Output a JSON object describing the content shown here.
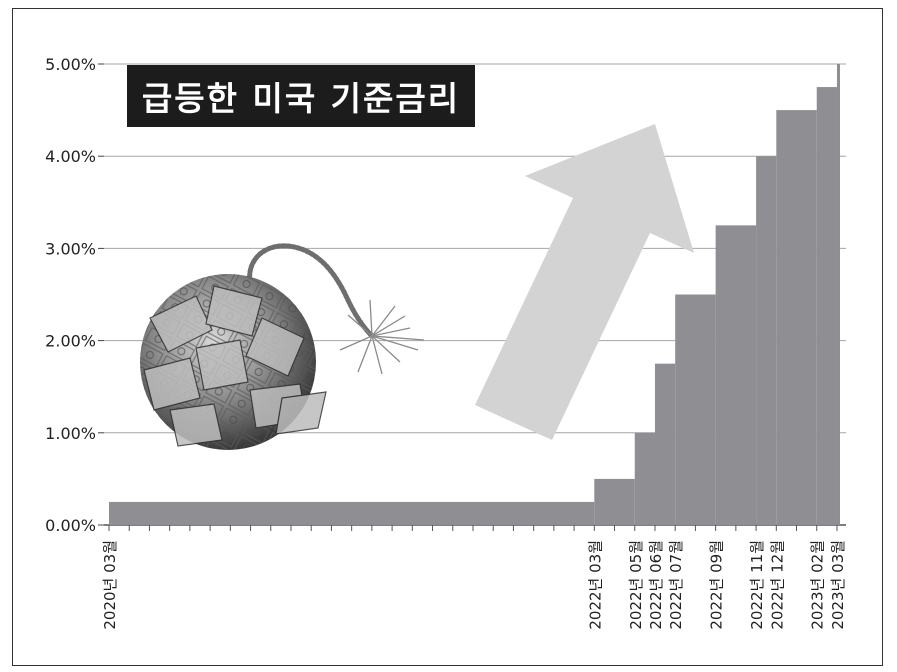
{
  "chart_data": {
    "type": "area",
    "title": "급등한 미국 기준금리",
    "ylim": [
      0,
      5
    ],
    "y_ticks": [
      {
        "value": 0,
        "label": "0.00%"
      },
      {
        "value": 1,
        "label": "1.00%"
      },
      {
        "value": 2,
        "label": "2.00%"
      },
      {
        "value": 3,
        "label": "3.00%"
      },
      {
        "value": 4,
        "label": "4.00%"
      },
      {
        "value": 5,
        "label": "5.00%"
      }
    ],
    "x_ticks": [
      "2020년 03월",
      "2022년 03월",
      "2022년 05월",
      "2022년 06월",
      "2022년 07월",
      "2022년 09월",
      "2022년 11월",
      "2022년 12월",
      "2023년 02월",
      "2023년 03월"
    ],
    "series": [
      {
        "x": [
          "2020년 03월",
          "2022년 03월",
          "2022년 05월",
          "2022년 06월",
          "2022년 07월",
          "2022년 09월",
          "2022년 11월",
          "2022년 12월",
          "2023년 02월",
          "2023년 03월"
        ],
        "values": [
          0.25,
          0.5,
          1.0,
          1.75,
          2.5,
          3.25,
          4.0,
          4.5,
          4.75,
          5.0
        ]
      }
    ],
    "grid": true,
    "colors": {
      "bars": "#8e8e93",
      "arrow": "#d3d3d3",
      "gridline": "#a6a6a6",
      "title_bg": "#1c1c1c",
      "title_text": "#ffffff"
    }
  }
}
